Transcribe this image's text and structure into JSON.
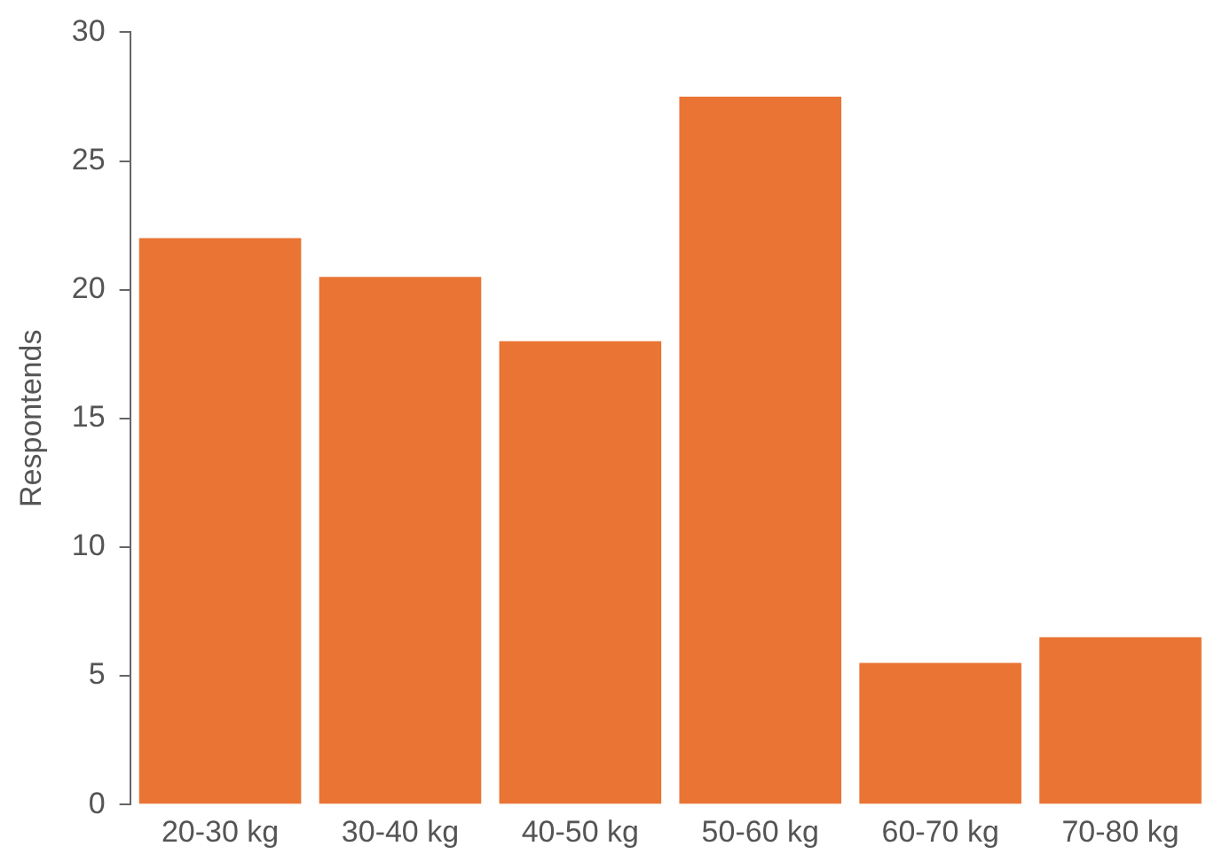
{
  "chart_data": {
    "type": "bar",
    "ylabel": "Respontends",
    "categories": [
      "20-30 kg",
      "30-40 kg",
      "40-50 kg",
      "50-60 kg",
      "60-70 kg",
      "70-80 kg"
    ],
    "values": [
      22,
      20.5,
      18,
      27.5,
      5.5,
      6.5
    ],
    "color": "#e97434",
    "ylim": [
      0,
      30
    ],
    "yticks": [
      0,
      5,
      10,
      15,
      20,
      25,
      30
    ],
    "grid": false,
    "legend": false
  }
}
